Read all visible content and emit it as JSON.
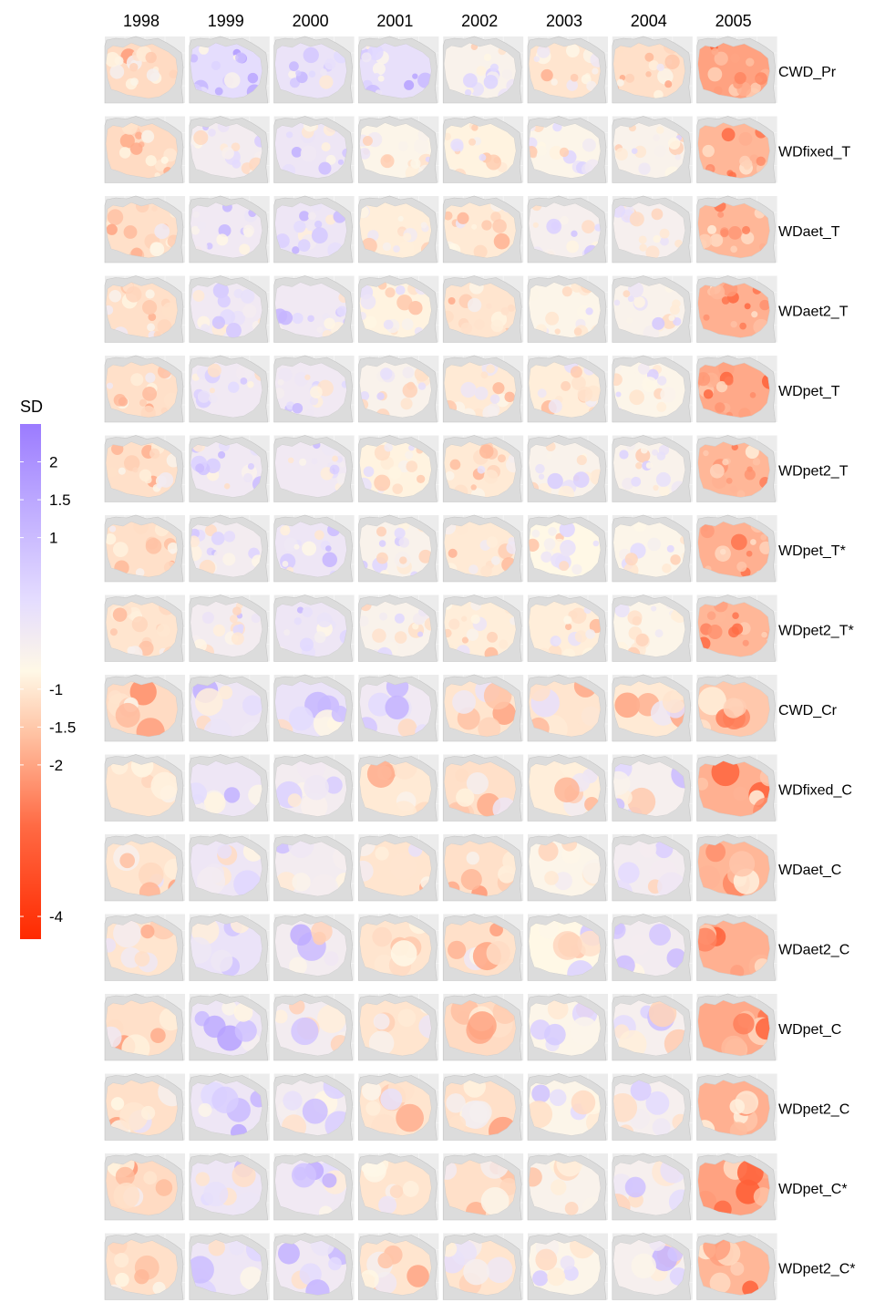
{
  "chart_data": {
    "type": "heatmap",
    "title": "",
    "legend": {
      "title": "SD",
      "placement": "left",
      "ticks": [
        "2",
        "1.5",
        "1",
        "-1",
        "-1.5",
        "-2",
        "-4"
      ],
      "tick_values": [
        2,
        1.5,
        1,
        -1,
        -1.5,
        -2,
        -4
      ],
      "range": [
        -4.3,
        2.5
      ],
      "colors": {
        "low": "#ff2a00",
        "mid": "#fff8e6",
        "high": "#9b7bff"
      }
    },
    "columns": [
      "1998",
      "1999",
      "2000",
      "2001",
      "2002",
      "2003",
      "2004",
      "2005"
    ],
    "rows": [
      "CWD_Pr",
      "WDfixed_T",
      "WDaet_T",
      "WDaet2_T",
      "WDpet_T",
      "WDpet2_T",
      "WDpet_T*",
      "WDpet2_T*",
      "CWD_Cr",
      "WDfixed_C",
      "WDaet_C",
      "WDaet2_C",
      "WDpet_C",
      "WDpet2_C",
      "WDpet_C*",
      "WDpet2_C*"
    ],
    "panel_mean_sd": [
      [
        -0.6,
        0.9,
        0.7,
        0.8,
        0.2,
        -0.4,
        -0.5,
        -1.6
      ],
      [
        -0.6,
        0.4,
        0.6,
        0.1,
        -0.1,
        0.1,
        0.2,
        -1.3
      ],
      [
        -0.5,
        0.5,
        0.6,
        -0.2,
        -0.3,
        0.3,
        0.3,
        -1.3
      ],
      [
        -0.5,
        0.5,
        0.5,
        -0.1,
        -0.4,
        0.1,
        0.2,
        -1.4
      ],
      [
        -0.5,
        0.5,
        0.5,
        0.2,
        -0.3,
        -0.2,
        0.1,
        -1.5
      ],
      [
        -0.5,
        0.5,
        0.5,
        -0.1,
        -0.3,
        0.2,
        0.2,
        -1.3
      ],
      [
        -0.5,
        0.4,
        0.6,
        0.2,
        -0.3,
        0.0,
        0.1,
        -1.4
      ],
      [
        -0.4,
        0.4,
        0.6,
        0.2,
        -0.2,
        -0.2,
        0.1,
        -1.3
      ],
      [
        -0.6,
        0.6,
        0.7,
        0.5,
        -0.4,
        -0.4,
        -0.3,
        -1.0
      ],
      [
        -0.4,
        0.6,
        0.4,
        -0.3,
        -0.5,
        -0.2,
        0.3,
        -1.4
      ],
      [
        -0.4,
        0.6,
        0.4,
        -0.4,
        -0.5,
        0.1,
        0.4,
        -1.3
      ],
      [
        -0.4,
        0.7,
        0.4,
        -0.4,
        -0.5,
        0.0,
        0.4,
        -1.4
      ],
      [
        -0.5,
        0.6,
        0.4,
        -0.4,
        -0.6,
        0.1,
        0.3,
        -1.5
      ],
      [
        -0.5,
        0.6,
        0.4,
        -0.4,
        -0.5,
        0.1,
        0.3,
        -1.4
      ],
      [
        -0.6,
        0.6,
        0.5,
        -0.4,
        -0.5,
        0.2,
        0.3,
        -1.6
      ],
      [
        -0.5,
        0.6,
        0.5,
        -0.4,
        -0.4,
        0.1,
        0.3,
        -1.3
      ]
    ]
  }
}
